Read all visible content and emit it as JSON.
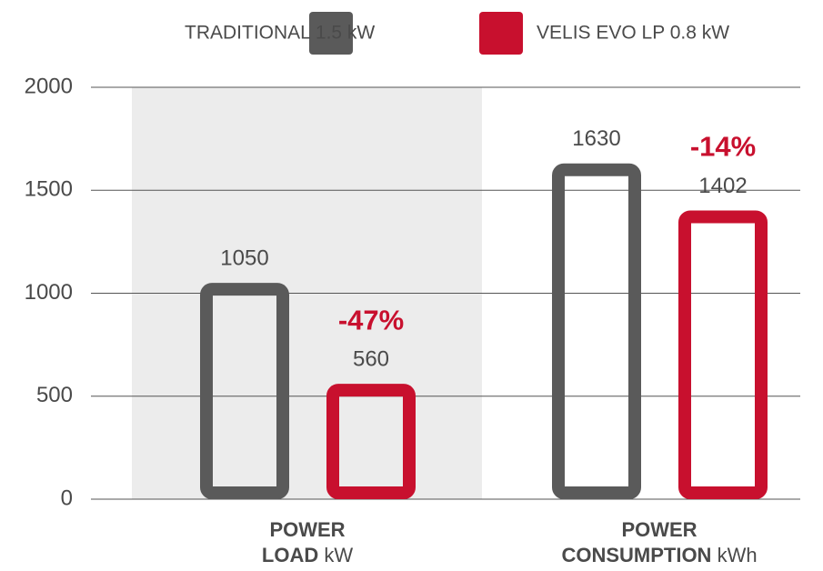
{
  "chart_data": {
    "type": "bar",
    "categories": [
      "POWER LOAD",
      "POWER CONSUMPTION"
    ],
    "category_units": [
      "kW",
      "kWh"
    ],
    "series": [
      {
        "name": "TRADITIONAL 1.5 kW",
        "color": "#5a5a5a",
        "values": [
          1050,
          1630
        ]
      },
      {
        "name": "VELIS EVO LP 0.8 kW",
        "color": "#c8102e",
        "values": [
          560,
          1402
        ]
      }
    ],
    "annotations": [
      "-47%",
      "-14%"
    ],
    "annotation_color": "#c8102e",
    "highlight_band_color": "#ececec",
    "ylim": [
      0,
      2000
    ],
    "yticks": [
      0,
      500,
      1000,
      1500,
      2000
    ],
    "grid": true,
    "legend": "top"
  }
}
